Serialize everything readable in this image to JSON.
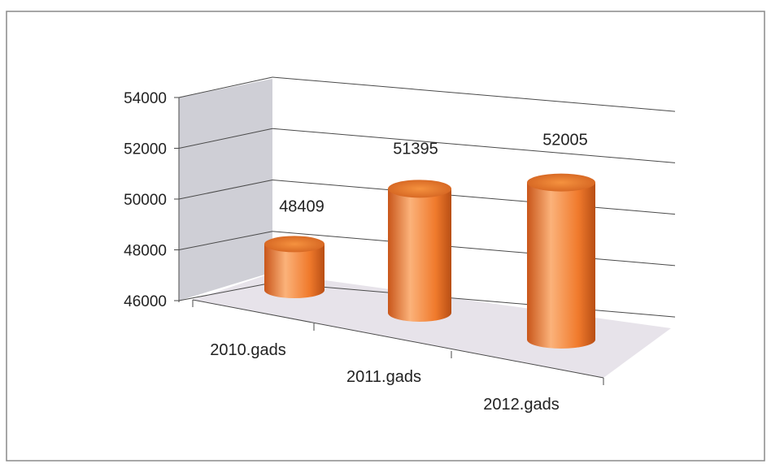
{
  "chart_data": {
    "type": "bar",
    "bar_shape": "cylinder-3d",
    "categories": [
      "2010.gads",
      "2011.gads",
      "2012.gads"
    ],
    "values": [
      48409,
      51395,
      52005
    ],
    "data_labels": [
      "48409",
      "51395",
      "52005"
    ],
    "y_ticks": [
      "46000",
      "48000",
      "50000",
      "52000",
      "54000"
    ],
    "ylim": [
      46000,
      54000
    ],
    "title": "",
    "xlabel": "",
    "ylabel": "",
    "grid": true,
    "legend": "none"
  },
  "colors": {
    "bar": "#f07a2c",
    "bar_light": "#fbb27a",
    "bar_dark": "#c9561a",
    "wall": "#cfcfd6",
    "floor": "#e7e3ea",
    "gridline": "#4a4a4a",
    "frame": "#8a8a8a"
  }
}
